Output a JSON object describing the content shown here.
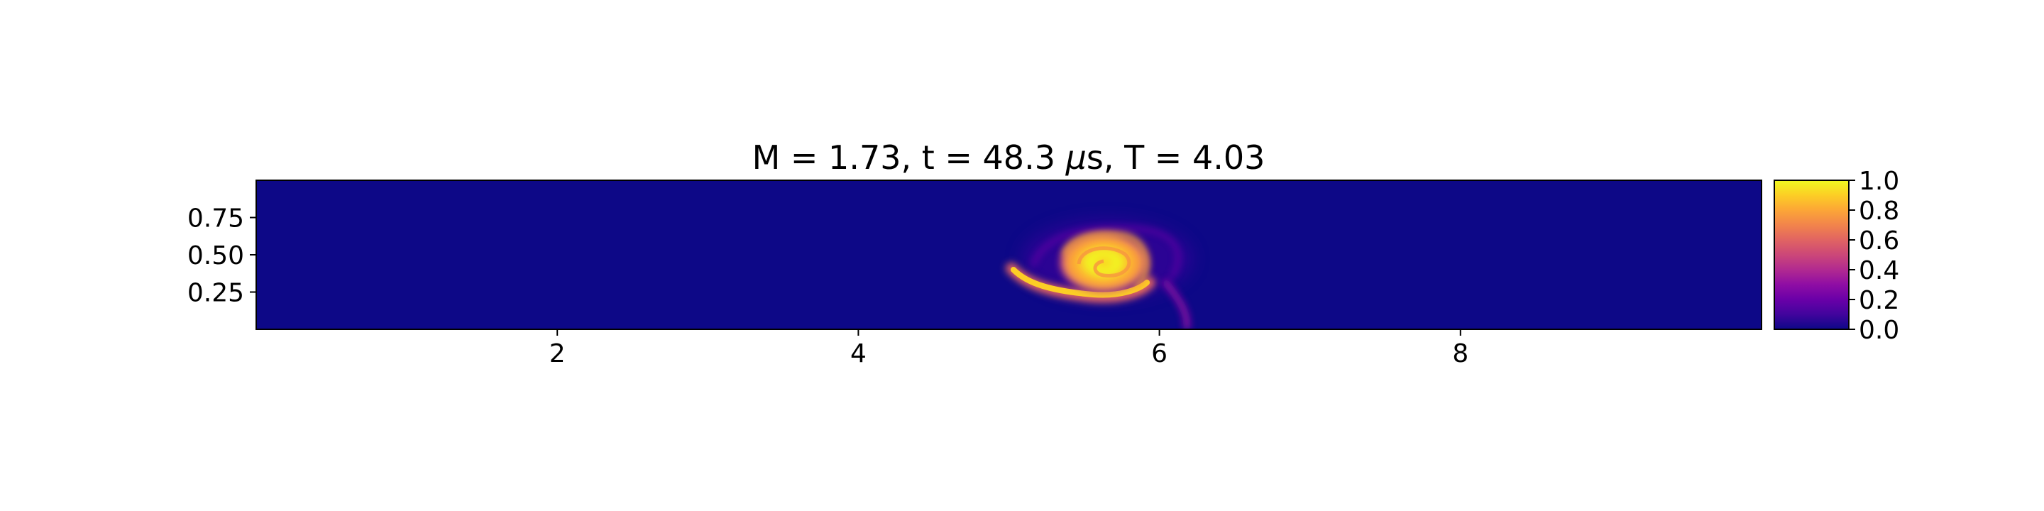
{
  "chart_data": {
    "type": "heatmap",
    "title": "M = 1.73, t = 48.3 μs, T = 4.03",
    "title_parts": {
      "pre": "M = 1.73, t = 48.3 ",
      "mu": "μ",
      "post": "s, T = 4.03"
    },
    "xlabel": "",
    "ylabel": "",
    "xlim": [
      0,
      10
    ],
    "ylim": [
      0,
      1
    ],
    "x_ticks": [
      2,
      4,
      6,
      8
    ],
    "x_tick_labels": [
      "2",
      "4",
      "6",
      "8"
    ],
    "y_ticks": [
      0.25,
      0.5,
      0.75
    ],
    "y_tick_labels": [
      "0.25",
      "0.50",
      "0.75"
    ],
    "colormap": "plasma",
    "clim": [
      0,
      1
    ],
    "colorbar_ticks": [
      0.0,
      0.2,
      0.4,
      0.6,
      0.8,
      1.0
    ],
    "colorbar_tick_labels": [
      "0.0",
      "0.2",
      "0.4",
      "0.6",
      "0.8",
      "1.0"
    ],
    "background_value": 0.0,
    "features": [
      {
        "name": "vortex core",
        "center_x": 5.75,
        "center_y": 0.47,
        "value": 1.0
      },
      {
        "name": "spiral tail",
        "from_x": 5.0,
        "to_x": 5.75,
        "y": 0.35,
        "value": 0.9
      },
      {
        "name": "downstream wisp",
        "x": 6.2,
        "y": 0.05,
        "value": 0.4
      }
    ]
  }
}
